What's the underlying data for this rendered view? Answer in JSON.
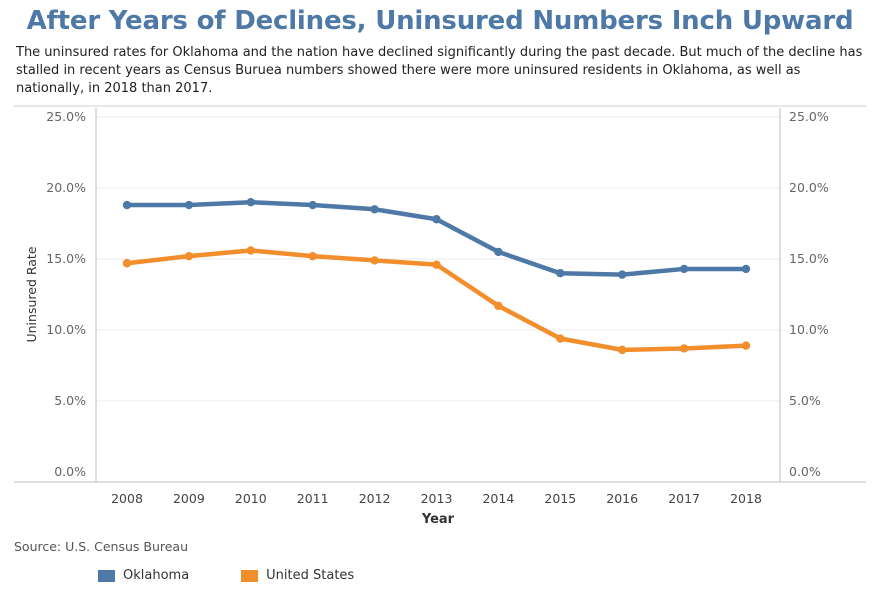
{
  "header": {
    "title": "After Years of Declines, Uninsured Numbers Inch Upward",
    "subtitle": "The uninsured rates for Oklahoma and the nation have declined significantly during the past decade. But much of the decline has stalled in recent years as Census Buruea numbers showed there were more uninsured residents in Oklahoma, as well as nationally, in 2018 than 2017."
  },
  "footer": {
    "source": "Source: U.S. Census Bureau"
  },
  "chart_data": {
    "type": "line",
    "title": "After Years of Declines, Uninsured Numbers Inch Upward",
    "xlabel": "Year",
    "ylabel": "Uninsured Rate",
    "x": [
      "2008",
      "2009",
      "2010",
      "2011",
      "2012",
      "2013",
      "2014",
      "2015",
      "2016",
      "2017",
      "2018"
    ],
    "ylim": [
      0,
      25
    ],
    "yticks": [
      0,
      5,
      10,
      15,
      20,
      25
    ],
    "ytick_labels": [
      "0.0%",
      "5.0%",
      "10.0%",
      "15.0%",
      "20.0%",
      "25.0%"
    ],
    "dual_axis_labels": true,
    "grid": "horizontal",
    "legend_position": "bottom-left",
    "series": [
      {
        "name": "Oklahoma",
        "color": "#4e79a7",
        "values": [
          18.8,
          18.8,
          19.0,
          18.8,
          18.5,
          17.8,
          15.5,
          14.0,
          13.9,
          14.3,
          14.3
        ]
      },
      {
        "name": "United States",
        "color": "#f28e2b",
        "values": [
          14.7,
          15.2,
          15.6,
          15.2,
          14.9,
          14.6,
          11.7,
          9.4,
          8.6,
          8.7,
          8.9
        ]
      }
    ]
  }
}
